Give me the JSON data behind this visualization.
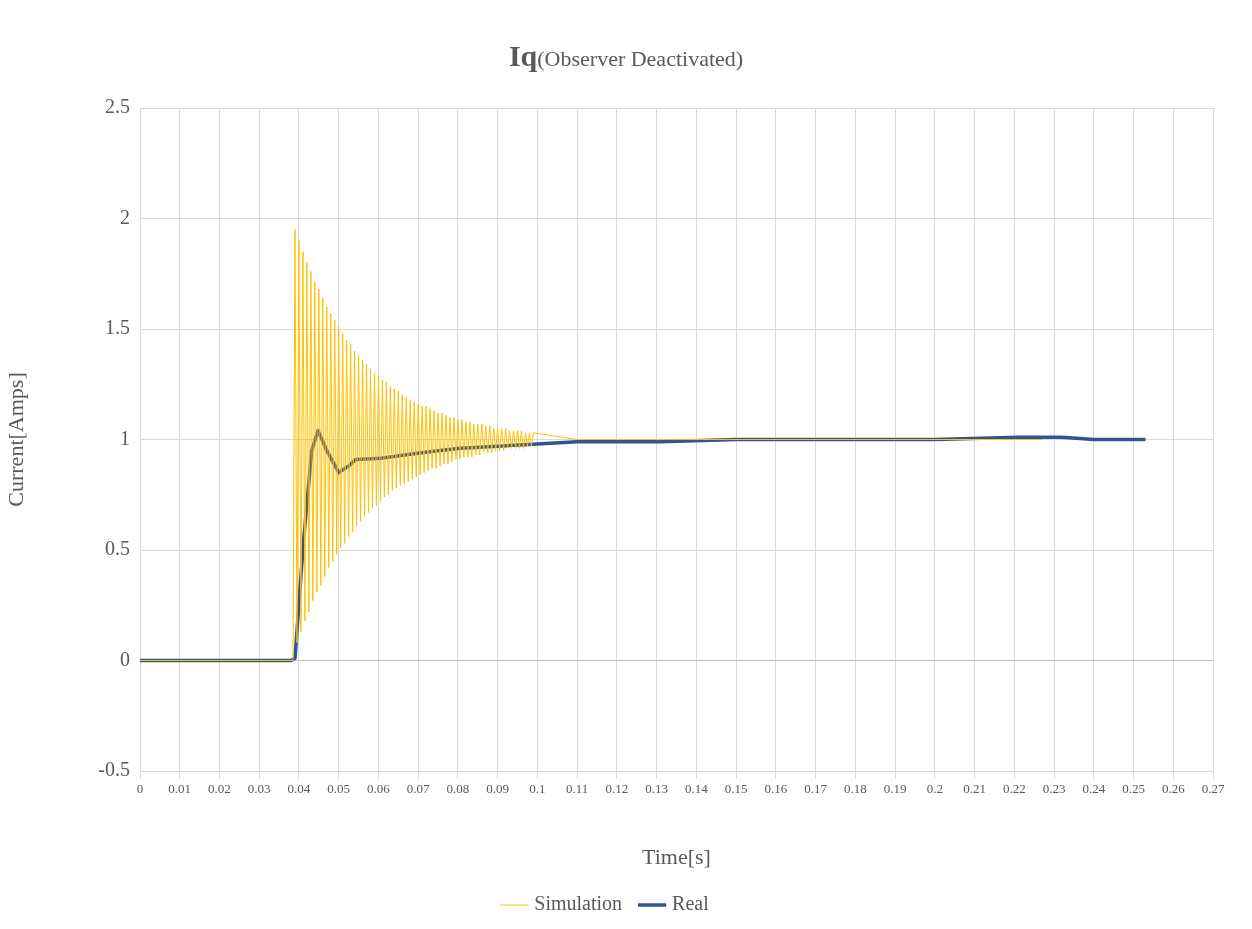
{
  "chart_data": {
    "type": "line",
    "title": "Iq",
    "subtitle": "(Observer Deactivated)",
    "xlabel": "Time[s]",
    "ylabel": "Current[Amps]",
    "xlim": [
      0,
      0.27
    ],
    "xticks": [
      0,
      0.01,
      0.02,
      0.03,
      0.04,
      0.05,
      0.06,
      0.07,
      0.08,
      0.09,
      0.1,
      0.11,
      0.12,
      0.13,
      0.14,
      0.15,
      0.16,
      0.17,
      0.18,
      0.19,
      0.2,
      0.21,
      0.22,
      0.23,
      0.24,
      0.25,
      0.26,
      0.27
    ],
    "ylim": [
      -0.5,
      2.5
    ],
    "yticks": [
      -0.5,
      0,
      0.5,
      1,
      1.5,
      2,
      2.5
    ],
    "grid": true,
    "legend": "bottom",
    "marker": "none",
    "line_style": "solid",
    "series": [
      {
        "name": "Simulation",
        "color": "#ffc000",
        "x": [
          0,
          0.0385,
          0.039,
          0.0395,
          0.04,
          0.0405,
          0.041,
          0.0415,
          0.042,
          0.0425,
          0.043,
          0.0435,
          0.044,
          0.0445,
          0.045,
          0.0455,
          0.046,
          0.0465,
          0.047,
          0.0475,
          0.048,
          0.0485,
          0.049,
          0.0495,
          0.05,
          0.0505,
          0.051,
          0.0515,
          0.052,
          0.0525,
          0.053,
          0.0535,
          0.054,
          0.0545,
          0.055,
          0.0555,
          0.056,
          0.0565,
          0.057,
          0.0575,
          0.058,
          0.0585,
          0.059,
          0.0595,
          0.06,
          0.0605,
          0.061,
          0.0615,
          0.062,
          0.0625,
          0.063,
          0.0635,
          0.064,
          0.0645,
          0.065,
          0.0655,
          0.066,
          0.0665,
          0.067,
          0.0675,
          0.068,
          0.0685,
          0.069,
          0.0695,
          0.07,
          0.0705,
          0.071,
          0.0715,
          0.072,
          0.0725,
          0.073,
          0.0735,
          0.074,
          0.0745,
          0.075,
          0.0755,
          0.076,
          0.0765,
          0.077,
          0.0775,
          0.078,
          0.0785,
          0.079,
          0.0795,
          0.08,
          0.0805,
          0.081,
          0.0815,
          0.082,
          0.0825,
          0.083,
          0.0835,
          0.084,
          0.0845,
          0.085,
          0.0855,
          0.086,
          0.0865,
          0.087,
          0.0875,
          0.088,
          0.0885,
          0.089,
          0.0895,
          0.09,
          0.0905,
          0.091,
          0.0915,
          0.092,
          0.0925,
          0.093,
          0.0935,
          0.094,
          0.0945,
          0.095,
          0.0955,
          0.096,
          0.0965,
          0.097,
          0.0975,
          0.098,
          0.0985,
          0.099,
          0.11,
          0.227
        ],
        "values": [
          0,
          0,
          1.95,
          0.08,
          1.9,
          0.13,
          1.85,
          0.18,
          1.8,
          0.22,
          1.76,
          0.27,
          1.71,
          0.31,
          1.68,
          0.34,
          1.64,
          0.38,
          1.6,
          0.42,
          1.57,
          0.45,
          1.54,
          0.48,
          1.51,
          0.51,
          1.48,
          0.53,
          1.45,
          0.56,
          1.43,
          0.58,
          1.4,
          0.61,
          1.38,
          0.63,
          1.36,
          0.65,
          1.34,
          0.67,
          1.32,
          0.69,
          1.3,
          0.7,
          1.29,
          0.72,
          1.27,
          0.74,
          1.26,
          0.75,
          1.24,
          0.77,
          1.23,
          0.78,
          1.22,
          0.79,
          1.2,
          0.8,
          1.19,
          0.81,
          1.18,
          0.82,
          1.17,
          0.83,
          1.16,
          0.84,
          1.15,
          0.85,
          1.15,
          0.86,
          1.14,
          0.87,
          1.13,
          0.87,
          1.12,
          0.88,
          1.12,
          0.89,
          1.11,
          0.89,
          1.1,
          0.9,
          1.1,
          0.91,
          1.09,
          0.91,
          1.09,
          0.92,
          1.08,
          0.92,
          1.08,
          0.92,
          1.07,
          0.93,
          1.07,
          0.93,
          1.07,
          0.94,
          1.06,
          0.94,
          1.06,
          0.94,
          1.05,
          0.95,
          1.05,
          0.95,
          1.05,
          0.95,
          1.05,
          0.96,
          1.04,
          0.96,
          1.04,
          0.96,
          1.04,
          0.96,
          1.04,
          0.96,
          1.03,
          0.97,
          1.03,
          0.97,
          1.03,
          1,
          1
        ]
      },
      {
        "name": "Real",
        "color": "#2f5597",
        "x": [
          0,
          0.01,
          0.02,
          0.03,
          0.038,
          0.039,
          0.0411,
          0.0432,
          0.0448,
          0.047,
          0.05,
          0.0525,
          0.0543,
          0.0606,
          0.0707,
          0.0805,
          0.09,
          0.1,
          0.11,
          0.131,
          0.15,
          0.181,
          0.2,
          0.221,
          0.232,
          0.24,
          0.253
        ],
        "values": [
          0,
          0,
          0,
          0,
          0,
          0.01,
          0.53,
          0.95,
          1.04,
          0.95,
          0.85,
          0.88,
          0.91,
          0.915,
          0.94,
          0.96,
          0.97,
          0.98,
          0.99,
          0.99,
          1,
          1,
          1,
          1.01,
          1.01,
          1,
          1
        ]
      }
    ]
  }
}
